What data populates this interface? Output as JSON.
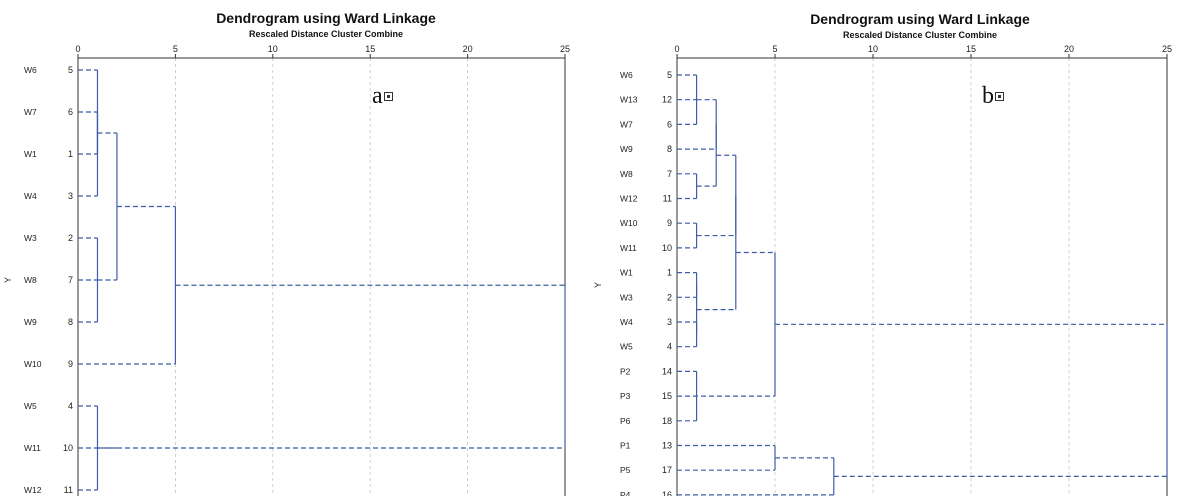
{
  "chart_data": [
    {
      "type": "dendrogram",
      "title": "Dendrogram using Ward Linkage",
      "subtitle": "Rescaled Distance Cluster Combine",
      "panel_label": "a",
      "ylabel": "Y",
      "xlim": [
        0,
        25
      ],
      "x_ticks": [
        0,
        5,
        10,
        15,
        20,
        25
      ],
      "grid": true,
      "line_color": "#3f5ea8",
      "leaves": [
        {
          "label": "W6",
          "case": 5
        },
        {
          "label": "W7",
          "case": 6
        },
        {
          "label": "W1",
          "case": 1
        },
        {
          "label": "W4",
          "case": 3
        },
        {
          "label": "W3",
          "case": 2
        },
        {
          "label": "W8",
          "case": 7
        },
        {
          "label": "W9",
          "case": 8
        },
        {
          "label": "W10",
          "case": 9
        },
        {
          "label": "W5",
          "case": 4
        },
        {
          "label": "W11",
          "case": 10
        },
        {
          "label": "W12",
          "case": 11
        }
      ],
      "merges": [
        {
          "a": "L0",
          "b": "L2",
          "height": 1
        },
        {
          "a": "L4",
          "b": "L6",
          "height": 1
        },
        {
          "a": "L8",
          "b": "L10",
          "height": 1
        },
        {
          "a": "L1",
          "b": "L3",
          "height": 1
        },
        {
          "a": "M0",
          "b": "M3",
          "height": 1
        },
        {
          "a": "L5",
          "b": "M1",
          "height": 1
        },
        {
          "a": "M4",
          "b": "M5",
          "height": 2
        },
        {
          "a": "M2",
          "b": "L9",
          "height": 2
        },
        {
          "a": "M6",
          "b": "L7",
          "height": 5
        },
        {
          "a": "M8",
          "b": "M7",
          "height": 25
        }
      ]
    },
    {
      "type": "dendrogram",
      "title": "Dendrogram using Ward Linkage",
      "subtitle": "Rescaled Distance Cluster Combine",
      "panel_label": "b",
      "ylabel": "Y",
      "xlim": [
        0,
        25
      ],
      "x_ticks": [
        0,
        5,
        10,
        15,
        20,
        25
      ],
      "grid": true,
      "line_color": "#3f5ea8",
      "leaves": [
        {
          "label": "W6",
          "case": 5
        },
        {
          "label": "W13",
          "case": 12
        },
        {
          "label": "W7",
          "case": 6
        },
        {
          "label": "W9",
          "case": 8
        },
        {
          "label": "W8",
          "case": 7
        },
        {
          "label": "W12",
          "case": 11
        },
        {
          "label": "W10",
          "case": 9
        },
        {
          "label": "W11",
          "case": 10
        },
        {
          "label": "W1",
          "case": 1
        },
        {
          "label": "W3",
          "case": 2
        },
        {
          "label": "W4",
          "case": 3
        },
        {
          "label": "W5",
          "case": 4
        },
        {
          "label": "P2",
          "case": 14
        },
        {
          "label": "P3",
          "case": 15
        },
        {
          "label": "P6",
          "case": 18
        },
        {
          "label": "P1",
          "case": 13
        },
        {
          "label": "P5",
          "case": 17
        },
        {
          "label": "P4",
          "case": 16
        }
      ],
      "merges": [
        {
          "a": "L0",
          "b": "L2",
          "height": 1
        },
        {
          "a": "L4",
          "b": "L5",
          "height": 1
        },
        {
          "a": "L6",
          "b": "L7",
          "height": 1
        },
        {
          "a": "L8",
          "b": "L9",
          "height": 1
        },
        {
          "a": "L12",
          "b": "L14",
          "height": 1
        },
        {
          "a": "L10",
          "b": "L11",
          "height": 1
        },
        {
          "a": "M3",
          "b": "M5",
          "height": 1
        },
        {
          "a": "M0",
          "b": "L1",
          "height": 1
        },
        {
          "a": "M7",
          "b": "L3",
          "height": 2
        },
        {
          "a": "M8",
          "b": "M1",
          "height": 2
        },
        {
          "a": "M9",
          "b": "M2",
          "height": 3
        },
        {
          "a": "M10",
          "b": "M6",
          "height": 3
        },
        {
          "a": "M11",
          "b": "L13",
          "height": 5
        },
        {
          "a": "L15",
          "b": "L16",
          "height": 5
        },
        {
          "a": "M13",
          "b": "L17",
          "height": 8
        },
        {
          "a": "M12",
          "b": "M14",
          "height": 25
        }
      ]
    }
  ]
}
